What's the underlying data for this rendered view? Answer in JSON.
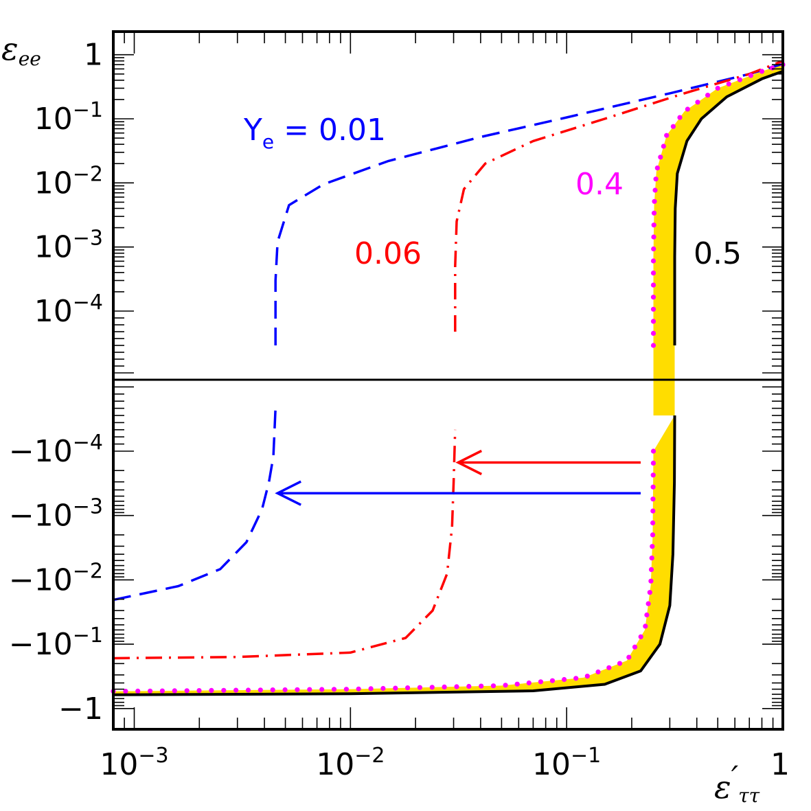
{
  "chart_data": {
    "type": "line",
    "x_scale": "log",
    "y_scale": "symmetric-log",
    "xlim": [
      0.0008,
      1
    ],
    "ylabel_symbol": "ε",
    "ylabel_sub": "ee",
    "xlabel_symbol": "ε",
    "xlabel_prime": "′",
    "xlabel_sub": "ττ",
    "x_ticks": [
      {
        "value": 0.001,
        "base": "10",
        "exp": "−3"
      },
      {
        "value": 0.01,
        "base": "10",
        "exp": "−2"
      },
      {
        "value": 0.1,
        "base": "10",
        "exp": "−1"
      },
      {
        "value": 1,
        "base": "1",
        "exp": ""
      }
    ],
    "y_ticks_upper": [
      {
        "value": 1,
        "base": "1",
        "exp": ""
      },
      {
        "value": 0.1,
        "base": "10",
        "exp": "−1"
      },
      {
        "value": 0.01,
        "base": "10",
        "exp": "−2"
      },
      {
        "value": 0.001,
        "base": "10",
        "exp": "−3"
      },
      {
        "value": 0.0001,
        "base": "10",
        "exp": "−4"
      }
    ],
    "y_ticks_lower": [
      {
        "value": -0.0001,
        "base": "−10",
        "exp": "−4"
      },
      {
        "value": -0.001,
        "base": "−10",
        "exp": "−3"
      },
      {
        "value": -0.01,
        "base": "−10",
        "exp": "−2"
      },
      {
        "value": -0.1,
        "base": "−10",
        "exp": "−1"
      },
      {
        "value": -1,
        "base": "−1",
        "exp": ""
      }
    ],
    "series": [
      {
        "label_prefix": "Y",
        "label_sub": "e",
        "label_value": " = 0.01",
        "color": "#0000ff",
        "style": "dashed",
        "lower_branch": [
          [
            0.0008,
            -0.0205
          ],
          [
            0.0016,
            -0.0125
          ],
          [
            0.0025,
            -0.0068
          ],
          [
            0.0033,
            -0.0026
          ],
          [
            0.0039,
            -0.0008
          ],
          [
            0.0042,
            -0.0003
          ],
          [
            0.0044,
            -0.00012
          ],
          [
            0.0045,
            -4e-05
          ]
        ],
        "upper_branch": [
          [
            0.0045,
            5e-05
          ],
          [
            0.0045,
            0.0003
          ],
          [
            0.0046,
            0.0012
          ],
          [
            0.0052,
            0.0045
          ],
          [
            0.0075,
            0.0095
          ],
          [
            0.015,
            0.022
          ],
          [
            0.04,
            0.052
          ],
          [
            0.1,
            0.105
          ],
          [
            0.3,
            0.25
          ],
          [
            0.7,
            0.5
          ],
          [
            1,
            0.72
          ]
        ]
      },
      {
        "label_value": "0.06",
        "color": "#ff0000",
        "style": "dashdot",
        "lower_branch": [
          [
            0.0008,
            -0.165
          ],
          [
            0.003,
            -0.158
          ],
          [
            0.01,
            -0.135
          ],
          [
            0.018,
            -0.08
          ],
          [
            0.024,
            -0.03
          ],
          [
            0.028,
            -0.008
          ],
          [
            0.0295,
            -0.0015
          ],
          [
            0.03,
            -0.0003
          ],
          [
            0.0305,
            -7e-05
          ]
        ],
        "upper_branch": [
          [
            0.0305,
            7e-05
          ],
          [
            0.0305,
            0.0005
          ],
          [
            0.031,
            0.0025
          ],
          [
            0.0335,
            0.008
          ],
          [
            0.042,
            0.02
          ],
          [
            0.07,
            0.045
          ],
          [
            0.15,
            0.1
          ],
          [
            0.35,
            0.25
          ],
          [
            0.7,
            0.5
          ],
          [
            1,
            0.8
          ]
        ]
      },
      {
        "label_value": "0.4",
        "color": "#ff00ff",
        "style": "dotted",
        "lower_branch": [
          [
            0.0008,
            -0.54
          ],
          [
            0.01,
            -0.5
          ],
          [
            0.05,
            -0.44
          ],
          [
            0.12,
            -0.33
          ],
          [
            0.19,
            -0.18
          ],
          [
            0.23,
            -0.06
          ],
          [
            0.245,
            -0.012
          ],
          [
            0.25,
            -0.002
          ],
          [
            0.252,
            -0.0001
          ]
        ],
        "upper_branch": [
          [
            0.252,
            5e-05
          ],
          [
            0.252,
            0.0007
          ],
          [
            0.254,
            0.0045
          ],
          [
            0.26,
            0.015
          ],
          [
            0.29,
            0.055
          ],
          [
            0.35,
            0.13
          ],
          [
            0.5,
            0.3
          ],
          [
            0.8,
            0.55
          ],
          [
            1,
            0.7
          ]
        ]
      },
      {
        "label_value": "0.5",
        "color": "#000000",
        "style": "solid",
        "lower_branch": [
          [
            0.0008,
            -0.61
          ],
          [
            0.01,
            -0.59
          ],
          [
            0.07,
            -0.53
          ],
          [
            0.15,
            -0.42
          ],
          [
            0.22,
            -0.26
          ],
          [
            0.27,
            -0.1
          ],
          [
            0.3,
            -0.025
          ],
          [
            0.31,
            -0.004
          ],
          [
            0.315,
            -0.0003
          ],
          [
            0.316,
            -5e-05
          ]
        ],
        "upper_branch": [
          [
            0.316,
            5e-05
          ],
          [
            0.316,
            0.0007
          ],
          [
            0.318,
            0.004
          ],
          [
            0.325,
            0.014
          ],
          [
            0.36,
            0.045
          ],
          [
            0.42,
            0.1
          ],
          [
            0.55,
            0.22
          ],
          [
            0.8,
            0.42
          ],
          [
            1,
            0.55
          ]
        ]
      }
    ],
    "arrows": [
      {
        "color": "#ff0000",
        "y": -0.00015,
        "x_from": 0.22,
        "x_to": 0.0315
      },
      {
        "color": "#0000ff",
        "y": -0.00045,
        "x_from": 0.22,
        "x_to": 0.0046
      }
    ],
    "band_color": "#ffdd00"
  }
}
